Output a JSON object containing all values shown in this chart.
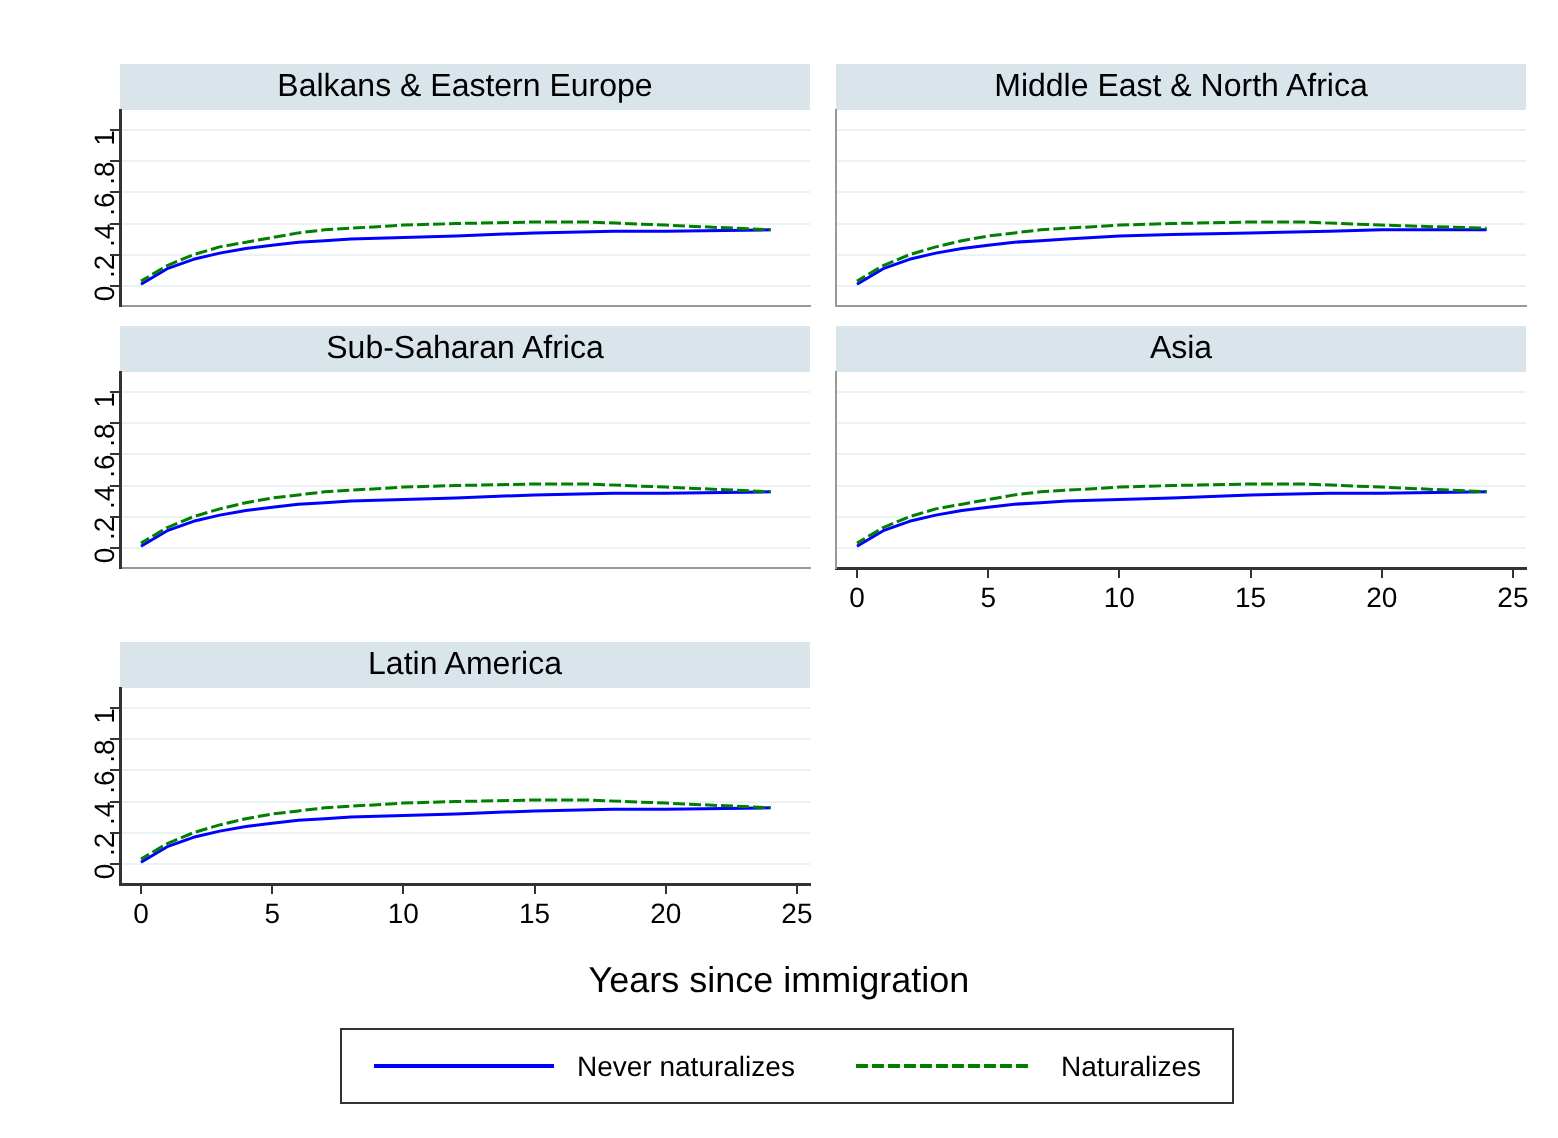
{
  "chart_data": [
    {
      "type": "line",
      "title": "Balkans & Eastern Europe",
      "xlim": [
        -0.8,
        25.5
      ],
      "ylim": [
        -0.13,
        1.13
      ],
      "yticks": [
        {
          "value": 0,
          "label": "0"
        },
        {
          "value": 0.2,
          "label": ".2"
        },
        {
          "value": 0.4,
          "label": ".4"
        },
        {
          "value": 0.6,
          "label": ".6"
        },
        {
          "value": 0.8,
          "label": ".8"
        },
        {
          "value": 1,
          "label": "1"
        }
      ],
      "grid": "y",
      "tick_labels": "y",
      "series": [
        {
          "color": "#0000ff",
          "line_style": "solid",
          "x": [
            0,
            1,
            2,
            3,
            4,
            5,
            6,
            7,
            8,
            10,
            12,
            15,
            18,
            20,
            24
          ],
          "values": [
            0.01,
            0.11,
            0.17,
            0.21,
            0.24,
            0.26,
            0.28,
            0.29,
            0.3,
            0.31,
            0.32,
            0.34,
            0.35,
            0.35,
            0.36
          ]
        },
        {
          "color": "#008000",
          "line_style": "dashed",
          "x": [
            0,
            1,
            2,
            3,
            4,
            5,
            6,
            7,
            8,
            10,
            12,
            15,
            17,
            20,
            24
          ],
          "values": [
            0.03,
            0.13,
            0.2,
            0.25,
            0.28,
            0.31,
            0.34,
            0.36,
            0.37,
            0.39,
            0.4,
            0.41,
            0.41,
            0.39,
            0.36
          ]
        }
      ]
    },
    {
      "type": "line",
      "title": "Middle East & North Africa",
      "xlim": [
        -0.8,
        25.5
      ],
      "ylim": [
        -0.13,
        1.13
      ],
      "yticks": [
        {
          "value": 0,
          "label": null
        },
        {
          "value": 0.2,
          "label": null
        },
        {
          "value": 0.4,
          "label": null
        },
        {
          "value": 0.6,
          "label": null
        },
        {
          "value": 0.8,
          "label": null
        },
        {
          "value": 1,
          "label": null
        }
      ],
      "grid": "y",
      "tick_labels": false,
      "series": [
        {
          "color": "#0000ff",
          "line_style": "solid",
          "x": [
            0,
            1,
            2,
            3,
            4,
            5,
            6,
            7,
            8,
            10,
            12,
            15,
            18,
            20,
            24
          ],
          "values": [
            0.01,
            0.11,
            0.17,
            0.21,
            0.24,
            0.26,
            0.28,
            0.29,
            0.3,
            0.32,
            0.33,
            0.34,
            0.35,
            0.36,
            0.36
          ]
        },
        {
          "color": "#008000",
          "line_style": "dashed",
          "x": [
            0,
            1,
            2,
            3,
            4,
            5,
            6,
            7,
            8,
            10,
            12,
            15,
            17,
            20,
            24
          ],
          "values": [
            0.03,
            0.13,
            0.2,
            0.25,
            0.29,
            0.32,
            0.34,
            0.36,
            0.37,
            0.39,
            0.4,
            0.41,
            0.41,
            0.39,
            0.37
          ]
        }
      ]
    },
    {
      "type": "line",
      "title": "Sub-Saharan Africa",
      "xlim": [
        -0.8,
        25.5
      ],
      "ylim": [
        -0.13,
        1.13
      ],
      "yticks": [
        {
          "value": 0,
          "label": "0"
        },
        {
          "value": 0.2,
          "label": ".2"
        },
        {
          "value": 0.4,
          "label": ".4"
        },
        {
          "value": 0.6,
          "label": ".6"
        },
        {
          "value": 0.8,
          "label": ".8"
        },
        {
          "value": 1,
          "label": "1"
        }
      ],
      "grid": "y",
      "tick_labels": "y",
      "series": [
        {
          "color": "#0000ff",
          "line_style": "solid",
          "x": [
            0,
            1,
            2,
            3,
            4,
            5,
            6,
            7,
            8,
            10,
            12,
            15,
            18,
            20,
            24
          ],
          "values": [
            0.01,
            0.11,
            0.17,
            0.21,
            0.24,
            0.26,
            0.28,
            0.29,
            0.3,
            0.31,
            0.32,
            0.34,
            0.35,
            0.35,
            0.36
          ]
        },
        {
          "color": "#008000",
          "line_style": "dashed",
          "x": [
            0,
            1,
            2,
            3,
            4,
            5,
            6,
            7,
            8,
            10,
            12,
            15,
            17,
            20,
            24
          ],
          "values": [
            0.03,
            0.13,
            0.2,
            0.25,
            0.29,
            0.32,
            0.34,
            0.36,
            0.37,
            0.39,
            0.4,
            0.41,
            0.41,
            0.39,
            0.36
          ]
        }
      ]
    },
    {
      "type": "line",
      "title": "Asia",
      "xlim": [
        -0.8,
        25.5
      ],
      "ylim": [
        -0.13,
        1.13
      ],
      "xticks": [
        0,
        5,
        10,
        15,
        20,
        25
      ],
      "yticks": [
        {
          "value": 0,
          "label": null
        },
        {
          "value": 0.2,
          "label": null
        },
        {
          "value": 0.4,
          "label": null
        },
        {
          "value": 0.6,
          "label": null
        },
        {
          "value": 0.8,
          "label": null
        },
        {
          "value": 1,
          "label": null
        }
      ],
      "grid": "y",
      "tick_labels": "x",
      "series": [
        {
          "color": "#0000ff",
          "line_style": "solid",
          "x": [
            0,
            1,
            2,
            3,
            4,
            5,
            6,
            7,
            8,
            10,
            12,
            15,
            18,
            20,
            24
          ],
          "values": [
            0.01,
            0.11,
            0.17,
            0.21,
            0.24,
            0.26,
            0.28,
            0.29,
            0.3,
            0.31,
            0.32,
            0.34,
            0.35,
            0.35,
            0.36
          ]
        },
        {
          "color": "#008000",
          "line_style": "dashed",
          "x": [
            0,
            1,
            2,
            3,
            4,
            5,
            6,
            7,
            8,
            10,
            12,
            15,
            17,
            20,
            24
          ],
          "values": [
            0.03,
            0.13,
            0.2,
            0.25,
            0.28,
            0.31,
            0.34,
            0.36,
            0.37,
            0.39,
            0.4,
            0.41,
            0.41,
            0.39,
            0.36
          ]
        }
      ]
    },
    {
      "type": "line",
      "title": "Latin America",
      "xlabel": "Years since immigration",
      "legend": "bottom",
      "xlim": [
        -0.8,
        25.5
      ],
      "ylim": [
        -0.13,
        1.13
      ],
      "xticks": [
        0,
        5,
        10,
        15,
        20,
        25
      ],
      "yticks": [
        {
          "value": 0,
          "label": "0"
        },
        {
          "value": 0.2,
          "label": ".2"
        },
        {
          "value": 0.4,
          "label": ".4"
        },
        {
          "value": 0.6,
          "label": ".6"
        },
        {
          "value": 0.8,
          "label": ".8"
        },
        {
          "value": 1,
          "label": "1"
        }
      ],
      "grid": "y",
      "series": [
        {
          "name": "Never naturalizes",
          "color": "#0000ff",
          "line_style": "solid",
          "x": [
            0,
            1,
            2,
            3,
            4,
            5,
            6,
            7,
            8,
            10,
            12,
            15,
            18,
            20,
            24
          ],
          "values": [
            0.01,
            0.11,
            0.17,
            0.21,
            0.24,
            0.26,
            0.28,
            0.29,
            0.3,
            0.31,
            0.32,
            0.34,
            0.35,
            0.35,
            0.36
          ]
        },
        {
          "name": "Naturalizes",
          "color": "#008000",
          "line_style": "dashed",
          "x": [
            0,
            1,
            2,
            3,
            4,
            5,
            6,
            7,
            8,
            10,
            12,
            15,
            17,
            20,
            24
          ],
          "values": [
            0.03,
            0.13,
            0.2,
            0.25,
            0.29,
            0.32,
            0.34,
            0.36,
            0.37,
            0.39,
            0.4,
            0.41,
            0.41,
            0.39,
            0.36
          ]
        }
      ]
    }
  ]
}
